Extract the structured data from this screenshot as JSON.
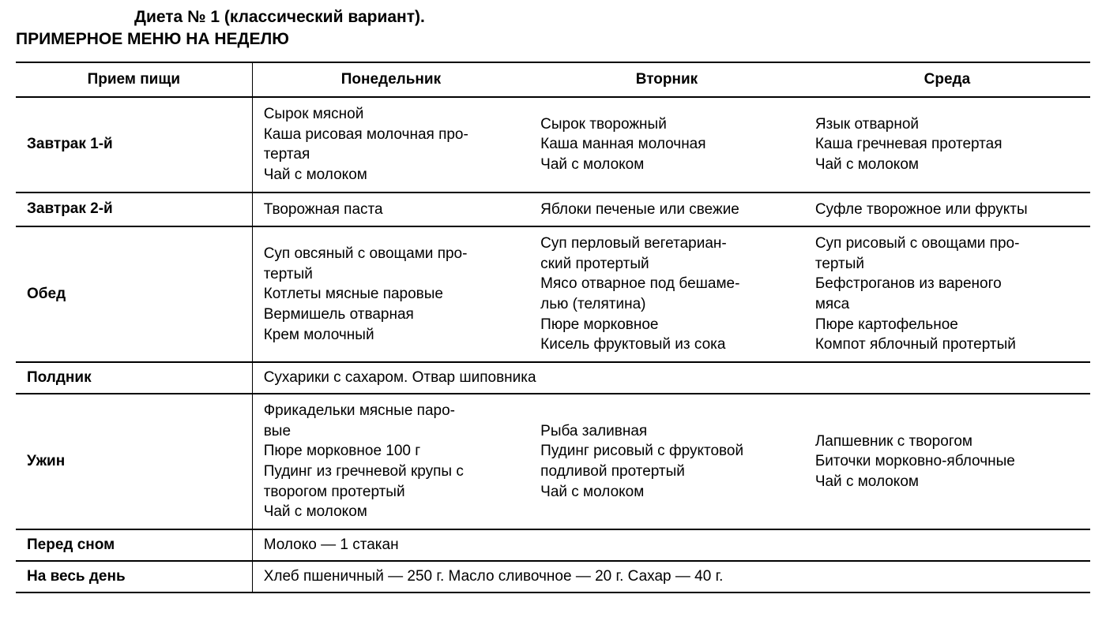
{
  "title": "Диета № 1 (классический вариант).",
  "subtitle": "ПРИМЕРНОЕ МЕНЮ НА НЕДЕЛЮ",
  "table": {
    "columns": [
      "Прием пищи",
      "Понедельник",
      "Вторник",
      "Среда"
    ],
    "rows": [
      {
        "label": "Завтрак 1-й",
        "cells": [
          [
            "Сырок мясной",
            "Каша рисовая молочная про-",
            "тертая",
            "Чай с молоком"
          ],
          [
            "Сырок творожный",
            "Каша манная молочная",
            "Чай с молоком"
          ],
          [
            "Язык отварной",
            "Каша гречневая протертая",
            "Чай с молоком"
          ]
        ]
      },
      {
        "label": "Завтрак 2-й",
        "cells": [
          [
            "Творожная паста"
          ],
          [
            "Яблоки печеные или свежие"
          ],
          [
            "Суфле творожное или фрукты"
          ]
        ]
      },
      {
        "label": "Обед",
        "cells": [
          [
            "Суп овсяный с овощами про-",
            "тертый",
            "Котлеты мясные паровые",
            "Вермишель отварная",
            "Крем молочный"
          ],
          [
            "Суп перловый вегетариан-",
            "ский протертый",
            "Мясо отварное под бешаме-",
            "лью (телятина)",
            "Пюре морковное",
            "Кисель фруктовый из сока"
          ],
          [
            "Суп рисовый с овощами про-",
            "тертый",
            "Бефстроганов из вареного",
            "мяса",
            "Пюре картофельное",
            "Компот яблочный протертый"
          ]
        ]
      },
      {
        "label": "Полдник",
        "span": true,
        "spanText": "Сухарики с сахаром. Отвар шиповника"
      },
      {
        "label": "Ужин",
        "cells": [
          [
            "Фрикадельки мясные паро-",
            "вые",
            "Пюре морковное 100 г",
            "Пудинг из гречневой крупы с",
            "творогом протертый",
            "Чай с молоком"
          ],
          [
            "Рыба заливная",
            "Пудинг рисовый с фруктовой",
            "подливой протертый",
            "Чай с молоком"
          ],
          [
            "Лапшевник с творогом",
            "Биточки морковно-яблочные",
            "Чай с молоком"
          ]
        ]
      },
      {
        "label": "Перед сном",
        "span": true,
        "spanText": "Молоко — 1 стакан"
      },
      {
        "label": "На весь день",
        "span": true,
        "spanText": "Хлеб пшеничный — 250 г. Масло сливочное — 20 г. Сахар — 40 г."
      }
    ],
    "styling": {
      "border_color": "#000000",
      "background_color": "#ffffff",
      "text_color": "#000000",
      "header_fontsize": 19,
      "body_fontsize": 19,
      "title_fontsize": 21,
      "col_widths_pct": [
        22,
        26,
        26,
        26
      ]
    }
  }
}
